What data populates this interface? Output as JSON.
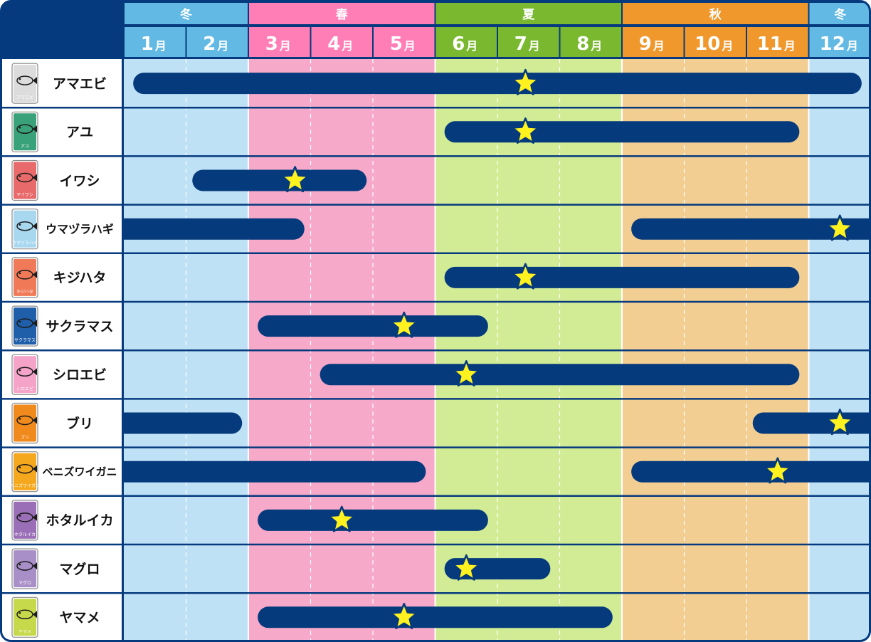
{
  "chart_data": {
    "type": "gantt",
    "seasons": [
      {
        "label": "冬",
        "start": 1,
        "end": 2,
        "header_color": "#62b9e3",
        "bg_color": "#bfe1f5"
      },
      {
        "label": "春",
        "start": 3,
        "end": 5,
        "header_color": "#ff7eb5",
        "bg_color": "#f6a9c9"
      },
      {
        "label": "夏",
        "start": 6,
        "end": 8,
        "header_color": "#7ab92f",
        "bg_color": "#d2ec95"
      },
      {
        "label": "秋",
        "start": 9,
        "end": 11,
        "header_color": "#f0982c",
        "bg_color": "#f2ce92"
      },
      {
        "label": "冬",
        "start": 12,
        "end": 12,
        "header_color": "#62b9e3",
        "bg_color": "#bfe1f5"
      }
    ],
    "months": [
      {
        "num": "1",
        "unit": "月"
      },
      {
        "num": "2",
        "unit": "月"
      },
      {
        "num": "3",
        "unit": "月"
      },
      {
        "num": "4",
        "unit": "月"
      },
      {
        "num": "5",
        "unit": "月"
      },
      {
        "num": "6",
        "unit": "月"
      },
      {
        "num": "7",
        "unit": "月"
      },
      {
        "num": "8",
        "unit": "月"
      },
      {
        "num": "9",
        "unit": "月"
      },
      {
        "num": "10",
        "unit": "月"
      },
      {
        "num": "11",
        "unit": "月"
      },
      {
        "num": "12",
        "unit": "月"
      }
    ],
    "colors": {
      "bar": "#053a7d",
      "star": "#fff21f",
      "frame": "#063a7e"
    },
    "fish": [
      {
        "name": "アマエビ",
        "icon": "shrimp-icon",
        "icon_bg": "#dcdcdc",
        "icon_caption": "アマエビ",
        "segments": [
          {
            "start": 1.15,
            "end": 12.85
          }
        ],
        "peak": 7.45
      },
      {
        "name": "アユ",
        "icon": "sweetfish-icon",
        "icon_bg": "#3aa27a",
        "icon_caption": "アユ",
        "segments": [
          {
            "start": 6.15,
            "end": 11.85
          }
        ],
        "peak": 7.45
      },
      {
        "name": "イワシ",
        "icon": "sardine-icon",
        "icon_bg": "#e86a6a",
        "icon_caption": "マイワシ",
        "segments": [
          {
            "start": 2.1,
            "end": 4.9
          }
        ],
        "peak": 3.75
      },
      {
        "name": "ウマヅラハギ",
        "icon": "filefish-icon",
        "icon_bg": "#a8d8f0",
        "icon_caption": "ウマヅラハギ",
        "segments": [
          {
            "start": 1.0,
            "end": 3.9
          },
          {
            "start": 9.15,
            "end": 13.0
          }
        ],
        "peak": 12.5
      },
      {
        "name": "キジハタ",
        "icon": "grouper-icon",
        "icon_bg": "#f07a58",
        "icon_caption": "キジハタ",
        "segments": [
          {
            "start": 6.15,
            "end": 11.85
          }
        ],
        "peak": 7.45
      },
      {
        "name": "サクラマス",
        "icon": "cherry-salmon-icon",
        "icon_bg": "#1f5ea8",
        "icon_caption": "サクラマス",
        "segments": [
          {
            "start": 3.15,
            "end": 6.85
          }
        ],
        "peak": 5.5
      },
      {
        "name": "シロエビ",
        "icon": "white-shrimp-icon",
        "icon_bg": "#f5a3c8",
        "icon_caption": "シロエビ",
        "segments": [
          {
            "start": 4.15,
            "end": 11.85
          }
        ],
        "peak": 6.5
      },
      {
        "name": "ブリ",
        "icon": "yellowtail-icon",
        "icon_bg": "#f08a1c",
        "icon_caption": "ブリ",
        "segments": [
          {
            "start": 1.0,
            "end": 2.9
          },
          {
            "start": 11.1,
            "end": 13.0
          }
        ],
        "peak": 12.5
      },
      {
        "name": "ベニズワイガニ",
        "icon": "red-snow-crab-icon",
        "icon_bg": "#f5a81e",
        "icon_caption": "ベニズワイガニ",
        "segments": [
          {
            "start": 1.0,
            "end": 5.85
          },
          {
            "start": 9.15,
            "end": 13.0
          }
        ],
        "peak": 11.5
      },
      {
        "name": "ホタルイカ",
        "icon": "firefly-squid-icon",
        "icon_bg": "#9a6fb8",
        "icon_caption": "ホタルイカ",
        "segments": [
          {
            "start": 3.15,
            "end": 6.85
          }
        ],
        "peak": 4.5
      },
      {
        "name": "マグロ",
        "icon": "tuna-icon",
        "icon_bg": "#a98fc8",
        "icon_caption": "マグロ",
        "segments": [
          {
            "start": 6.15,
            "end": 7.85
          }
        ],
        "peak": 6.5
      },
      {
        "name": "ヤマメ",
        "icon": "masu-trout-icon",
        "icon_bg": "#c5d94a",
        "icon_caption": "ヤマメ",
        "segments": [
          {
            "start": 3.15,
            "end": 8.85
          }
        ],
        "peak": 5.5
      }
    ]
  }
}
